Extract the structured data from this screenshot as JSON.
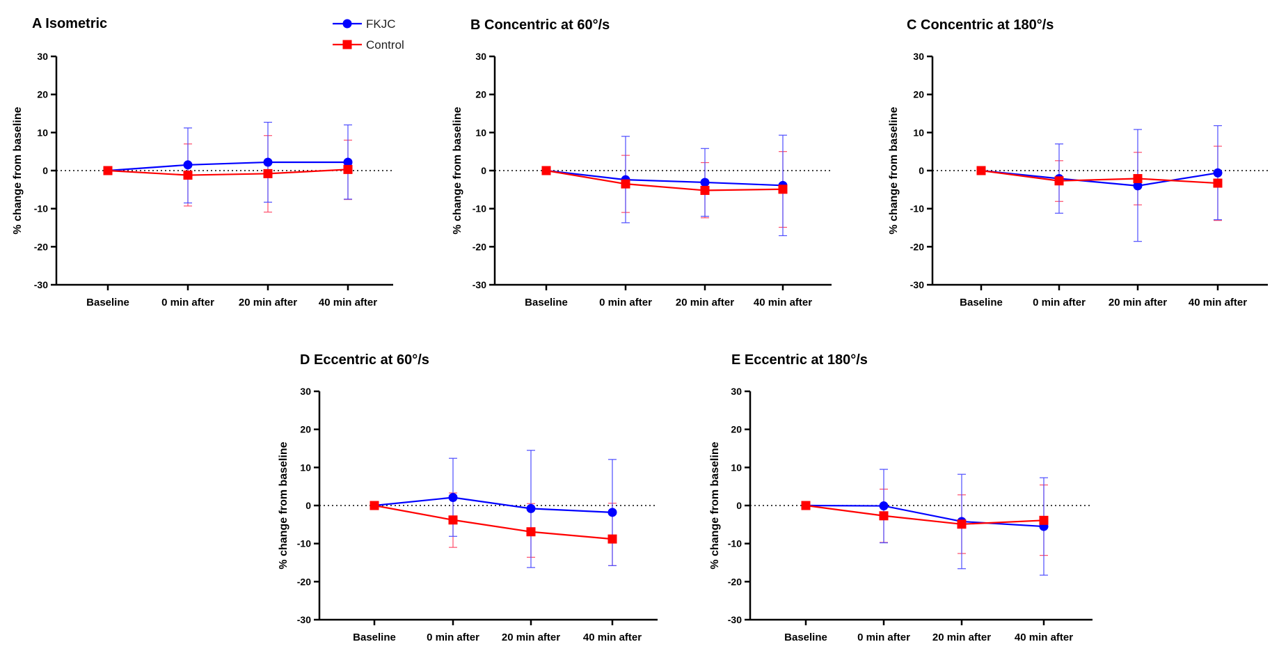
{
  "legend": [
    {
      "name": "FKJC",
      "color": "#0000ff",
      "marker": "circle"
    },
    {
      "name": "Control",
      "color": "#ff0000",
      "marker": "square"
    }
  ],
  "chart_data": [
    {
      "type": "line",
      "letter": "A",
      "title": "Isometric",
      "ylabel": "% change from baseline",
      "xlabel": "",
      "ylim": [
        -30,
        30
      ],
      "yticks": [
        -30,
        -20,
        -10,
        0,
        10,
        20,
        30
      ],
      "categories": [
        "Baseline",
        "0 min after",
        "20 min after",
        "40 min after"
      ],
      "series": [
        {
          "name": "FKJC",
          "values": [
            0,
            1.5,
            2.2,
            2.2
          ],
          "err_hi": [
            0,
            11.2,
            12.7,
            12.0
          ],
          "err_lo": [
            0,
            -8.5,
            -8.3,
            -7.5
          ]
        },
        {
          "name": "Control",
          "values": [
            0,
            -1.2,
            -0.8,
            0.3
          ],
          "err_hi": [
            0,
            7.0,
            9.2,
            8.0
          ],
          "err_lo": [
            0,
            -9.3,
            -10.9,
            -7.6
          ]
        }
      ]
    },
    {
      "type": "line",
      "letter": "B",
      "title": "Concentric at 60°/s",
      "ylabel": "% change from baseline",
      "xlabel": "",
      "ylim": [
        -30,
        30
      ],
      "yticks": [
        -30,
        -20,
        -10,
        0,
        10,
        20,
        30
      ],
      "categories": [
        "Baseline",
        "0 min after",
        "20 min after",
        "40 min after"
      ],
      "series": [
        {
          "name": "FKJC",
          "values": [
            0,
            -2.4,
            -3.1,
            -3.9
          ],
          "err_hi": [
            0,
            9.0,
            5.8,
            9.3
          ],
          "err_lo": [
            0,
            -13.7,
            -12.0,
            -17.1
          ]
        },
        {
          "name": "Control",
          "values": [
            0,
            -3.5,
            -5.2,
            -4.9
          ],
          "err_hi": [
            0,
            4.0,
            2.1,
            5.0
          ],
          "err_lo": [
            0,
            -11.0,
            -12.4,
            -14.9
          ]
        }
      ]
    },
    {
      "type": "line",
      "letter": "C",
      "title": "Concentric at 180°/s",
      "ylabel": "% change from baseline",
      "xlabel": "",
      "ylim": [
        -30,
        30
      ],
      "yticks": [
        -30,
        -20,
        -10,
        0,
        10,
        20,
        30
      ],
      "categories": [
        "Baseline",
        "0 min after",
        "20 min after",
        "40 min after"
      ],
      "series": [
        {
          "name": "FKJC",
          "values": [
            0,
            -2.1,
            -4.0,
            -0.6
          ],
          "err_hi": [
            0,
            7.0,
            10.8,
            11.8
          ],
          "err_lo": [
            0,
            -11.2,
            -18.6,
            -12.9
          ]
        },
        {
          "name": "Control",
          "values": [
            0,
            -2.7,
            -2.1,
            -3.3
          ],
          "err_hi": [
            0,
            2.6,
            4.8,
            6.4
          ],
          "err_lo": [
            0,
            -8.1,
            -9.0,
            -13.1
          ]
        }
      ]
    },
    {
      "type": "line",
      "letter": "D",
      "title": "Eccentric at 60°/s",
      "ylabel": "% change from baseline",
      "xlabel": "",
      "ylim": [
        -30,
        30
      ],
      "yticks": [
        -30,
        -20,
        -10,
        0,
        10,
        20,
        30
      ],
      "categories": [
        "Baseline",
        "0 min after",
        "20 min after",
        "40 min after"
      ],
      "series": [
        {
          "name": "FKJC",
          "values": [
            0,
            2.1,
            -0.8,
            -1.8
          ],
          "err_hi": [
            0,
            12.4,
            14.5,
            12.1
          ],
          "err_lo": [
            0,
            -8.1,
            -16.3,
            -15.8
          ]
        },
        {
          "name": "Control",
          "values": [
            0,
            -3.8,
            -6.9,
            -8.8
          ],
          "err_hi": [
            0,
            3.3,
            0.5,
            0.6
          ],
          "err_lo": [
            0,
            -11.0,
            -13.6,
            -15.8
          ]
        }
      ]
    },
    {
      "type": "line",
      "letter": "E",
      "title": "Eccentric at 180°/s",
      "ylabel": "% change from baseline",
      "xlabel": "",
      "ylim": [
        -30,
        30
      ],
      "yticks": [
        -30,
        -20,
        -10,
        0,
        10,
        20,
        30
      ],
      "categories": [
        "Baseline",
        "0 min after",
        "20 min after",
        "40 min after"
      ],
      "series": [
        {
          "name": "FKJC",
          "values": [
            0,
            -0.1,
            -4.2,
            -5.5
          ],
          "err_hi": [
            0,
            9.5,
            8.2,
            7.3
          ],
          "err_lo": [
            0,
            -9.8,
            -16.6,
            -18.3
          ]
        },
        {
          "name": "Control",
          "values": [
            0,
            -2.7,
            -4.9,
            -3.9
          ],
          "err_hi": [
            0,
            4.3,
            2.8,
            5.4
          ],
          "err_lo": [
            0,
            -9.7,
            -12.6,
            -13.1
          ]
        }
      ]
    }
  ]
}
